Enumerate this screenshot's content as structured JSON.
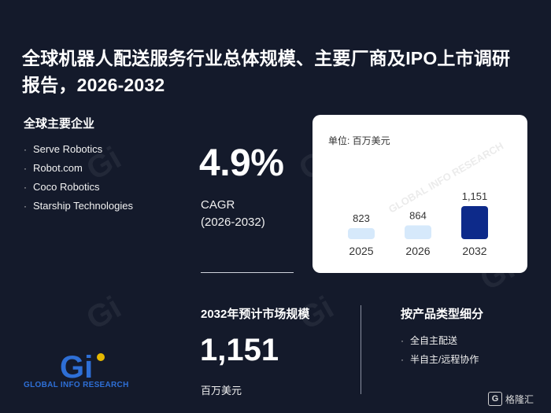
{
  "title": "全球机器人配送服务行业总体规模、主要厂商及IPO上市调研报告，2026-2032",
  "companies": {
    "heading": "全球主要企业",
    "items": [
      "Serve Robotics",
      "Robot.com",
      "Coco Robotics",
      "Starship Technologies"
    ]
  },
  "cagr": {
    "value": "4.9%",
    "label": "CAGR",
    "period": "(2026-2032)"
  },
  "chart_data": {
    "type": "bar",
    "unit_label": "单位: 百万美元",
    "categories": [
      "2025",
      "2026",
      "2032"
    ],
    "values": [
      823,
      864,
      1151
    ],
    "value_labels": [
      "823",
      "864",
      "1,151"
    ],
    "colors": [
      "#d6e9fb",
      "#d6e9fb",
      "#0d2a8a"
    ]
  },
  "market": {
    "heading": "2032年预计市场规模",
    "value": "1,151",
    "unit": "百万美元"
  },
  "segments": {
    "heading": "按产品类型细分",
    "items": [
      "全自主配送",
      "半自主/远程协作"
    ]
  },
  "logo": {
    "mark": "Gi",
    "text": "GLOBAL INFO RESEARCH"
  },
  "watermark": {
    "text": "GLOBAL INFO RESEARCH"
  },
  "badge": {
    "mark": "G",
    "text": "格隆汇"
  }
}
